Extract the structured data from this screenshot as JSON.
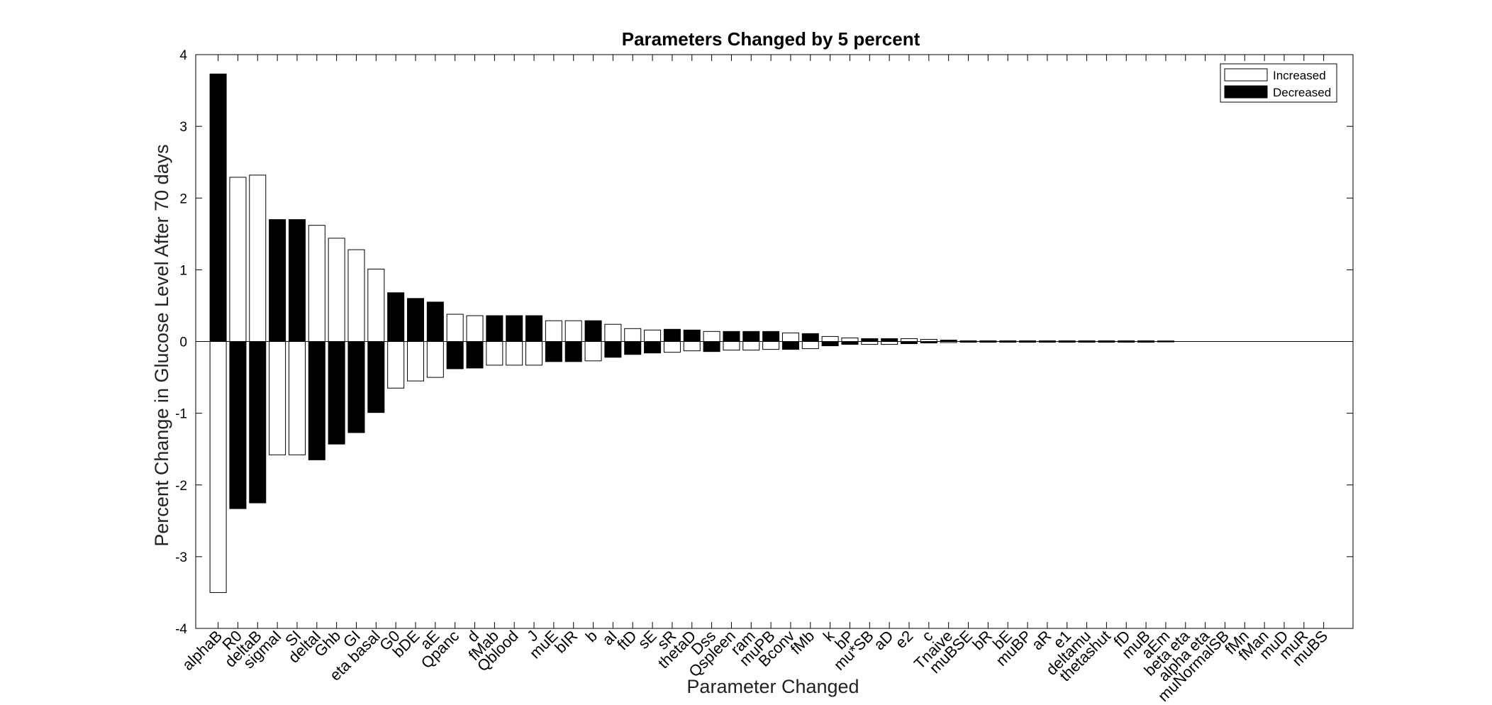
{
  "chart_data": {
    "type": "bar",
    "title": "Parameters Changed by 5 percent",
    "xlabel": "Parameter Changed",
    "ylabel": "Percent Change in Glucose Level After 70 days",
    "ylim": [
      -4,
      4
    ],
    "yticks": [
      "-4",
      "-3",
      "-2",
      "-1",
      "0",
      "1",
      "2",
      "3",
      "4"
    ],
    "grid": false,
    "legend_position": "top-right",
    "categories": [
      "alphaB",
      "R0",
      "deltaB",
      "sigmaI",
      "SI",
      "deltaI",
      "Ghb",
      "GI",
      "eta basal",
      "G0",
      "bDE",
      "aE",
      "Qpanc",
      "d",
      "fMab",
      "Qblood",
      "J",
      "muE",
      "bIR",
      "b",
      "aI",
      "ftD",
      "sE",
      "sR",
      "thetaD",
      "Dss",
      "Qspleen",
      "ram",
      "muPB",
      "Bconv",
      "fMb",
      "k",
      "bP",
      "mu*SB",
      "aD",
      "e2",
      "c",
      "Tnaive",
      "muBSE",
      "bR",
      "bE",
      "muBP",
      "aR",
      "e1",
      "deltamu",
      "thetashut",
      "fD",
      "muB",
      "aEm",
      "beta eta",
      "alpha eta",
      "muNormalSB",
      "fMn",
      "fMan",
      "muD",
      "muR",
      "muBS"
    ],
    "series": [
      {
        "name": "Increased",
        "color": "#ffffff",
        "values": [
          -3.5,
          2.29,
          2.32,
          -1.58,
          -1.58,
          1.62,
          1.44,
          1.28,
          1.01,
          -0.65,
          -0.55,
          -0.5,
          0.38,
          0.36,
          -0.33,
          -0.33,
          -0.33,
          0.29,
          0.29,
          -0.27,
          0.24,
          0.18,
          0.16,
          -0.15,
          -0.13,
          0.14,
          -0.12,
          -0.12,
          -0.11,
          0.12,
          -0.1,
          0.07,
          0.05,
          -0.04,
          -0.04,
          0.04,
          0.03,
          -0.015,
          -0.01,
          -0.01,
          -0.01,
          -0.01,
          -0.01,
          -0.01,
          -0.01,
          -0.01,
          -0.01,
          -0.01,
          -0.005,
          0,
          0,
          0,
          0,
          0,
          0,
          0,
          0
        ]
      },
      {
        "name": "Decreased",
        "color": "#000000",
        "values": [
          3.73,
          -2.33,
          -2.25,
          1.7,
          1.7,
          -1.65,
          -1.43,
          -1.27,
          -0.99,
          0.68,
          0.6,
          0.55,
          -0.38,
          -0.37,
          0.36,
          0.36,
          0.36,
          -0.28,
          -0.28,
          0.29,
          -0.22,
          -0.18,
          -0.16,
          0.17,
          0.16,
          -0.14,
          0.14,
          0.14,
          0.14,
          -0.11,
          0.11,
          -0.06,
          -0.04,
          0.04,
          0.04,
          -0.03,
          -0.02,
          0.02,
          0.01,
          0.01,
          0.01,
          0.01,
          0.01,
          0.01,
          0.01,
          0.01,
          0.01,
          0.01,
          0.008,
          0,
          0,
          0,
          0,
          0,
          0,
          0,
          0
        ]
      }
    ]
  }
}
